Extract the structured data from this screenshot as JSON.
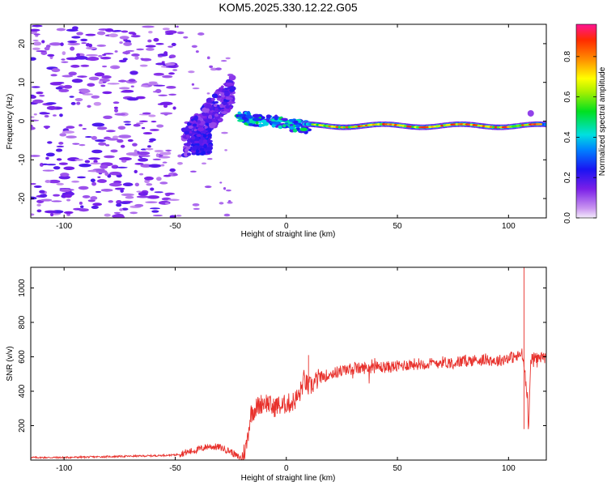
{
  "title": "KOM5.2025.330.12.22.G05",
  "chart_data": [
    {
      "type": "heatmap",
      "xlabel": "Height of straight line (km)",
      "ylabel": "Frequency (Hz)",
      "xlim": [
        -115,
        117
      ],
      "ylim": [
        -25,
        25
      ],
      "xticks": [
        "-100",
        "-50",
        "0",
        "50",
        "100"
      ],
      "xtick_values": [
        -100,
        -50,
        0,
        50,
        100
      ],
      "yticks": [
        "-20",
        "-10",
        "0",
        "10",
        "20"
      ],
      "ytick_values": [
        -20,
        -10,
        0,
        10,
        20
      ],
      "colorbar": {
        "label": "Normalized spectral amplitude",
        "ticks": [
          "0.0",
          "0.2",
          "0.4",
          "0.6",
          "0.8"
        ],
        "tick_values": [
          0.0,
          0.2,
          0.4,
          0.6,
          0.8
        ],
        "range": [
          0,
          0.96
        ]
      },
      "features": [
        {
          "name": "noise scatter",
          "x_range": [
            -115,
            -50
          ],
          "freq_range": [
            -25,
            25
          ],
          "amplitude": 0.15
        },
        {
          "name": "rising trace",
          "x_range": [
            -45,
            -25
          ],
          "freq_center": [
            -6,
            8
          ],
          "amplitude": 0.22
        },
        {
          "name": "transition",
          "x_range": [
            -20,
            10
          ],
          "freq_center": [
            1,
            -2
          ],
          "amplitude": 0.45
        },
        {
          "name": "steady carrier",
          "x_range": [
            10,
            117
          ],
          "freq_center": [
            -1,
            -1.5
          ],
          "amplitude": 0.9
        }
      ]
    },
    {
      "type": "line",
      "xlabel": "Height of straight line (km)",
      "ylabel": "SNR (v/v)",
      "xlim": [
        -115,
        117
      ],
      "ylim": [
        0,
        1120
      ],
      "xticks": [
        "-100",
        "-50",
        "0",
        "50",
        "100"
      ],
      "xtick_values": [
        -100,
        -50,
        0,
        50,
        100
      ],
      "yticks": [
        "200",
        "400",
        "600",
        "800",
        "1000"
      ],
      "ytick_values": [
        200,
        400,
        600,
        800,
        1000
      ],
      "series": [
        {
          "name": "SNR",
          "color": "#e8312c",
          "x": [
            -115,
            -100,
            -80,
            -60,
            -50,
            -45,
            -40,
            -35,
            -30,
            -25,
            -22,
            -20,
            -18,
            -16,
            -14,
            -12,
            -10,
            -8,
            -6,
            -4,
            -2,
            0,
            2,
            4,
            6,
            8,
            10,
            12,
            15,
            20,
            25,
            30,
            35,
            40,
            45,
            50,
            55,
            60,
            65,
            70,
            75,
            80,
            85,
            90,
            95,
            100,
            104,
            106,
            107,
            108,
            109,
            110,
            113,
            117
          ],
          "values": [
            15,
            15,
            20,
            25,
            30,
            45,
            60,
            80,
            75,
            50,
            20,
            10,
            80,
            270,
            300,
            320,
            340,
            330,
            300,
            320,
            310,
            330,
            330,
            350,
            380,
            470,
            420,
            440,
            480,
            500,
            520,
            530,
            535,
            540,
            540,
            545,
            555,
            560,
            560,
            570,
            565,
            575,
            580,
            585,
            575,
            595,
            600,
            620,
            550,
            420,
            190,
            590,
            595,
            600
          ]
        }
      ],
      "annotations": [
        {
          "x": 10,
          "y": 610,
          "label": "spike"
        },
        {
          "x": 107,
          "y": 1120,
          "label": "spike"
        },
        {
          "x": 107,
          "y": 180,
          "label": "dip"
        }
      ]
    }
  ],
  "colors": {
    "line": "#e8312c",
    "axis": "#000000",
    "background": "#ffffff",
    "trace_purple": "#8c4ad9",
    "trace_light": "#c7a6f2"
  }
}
